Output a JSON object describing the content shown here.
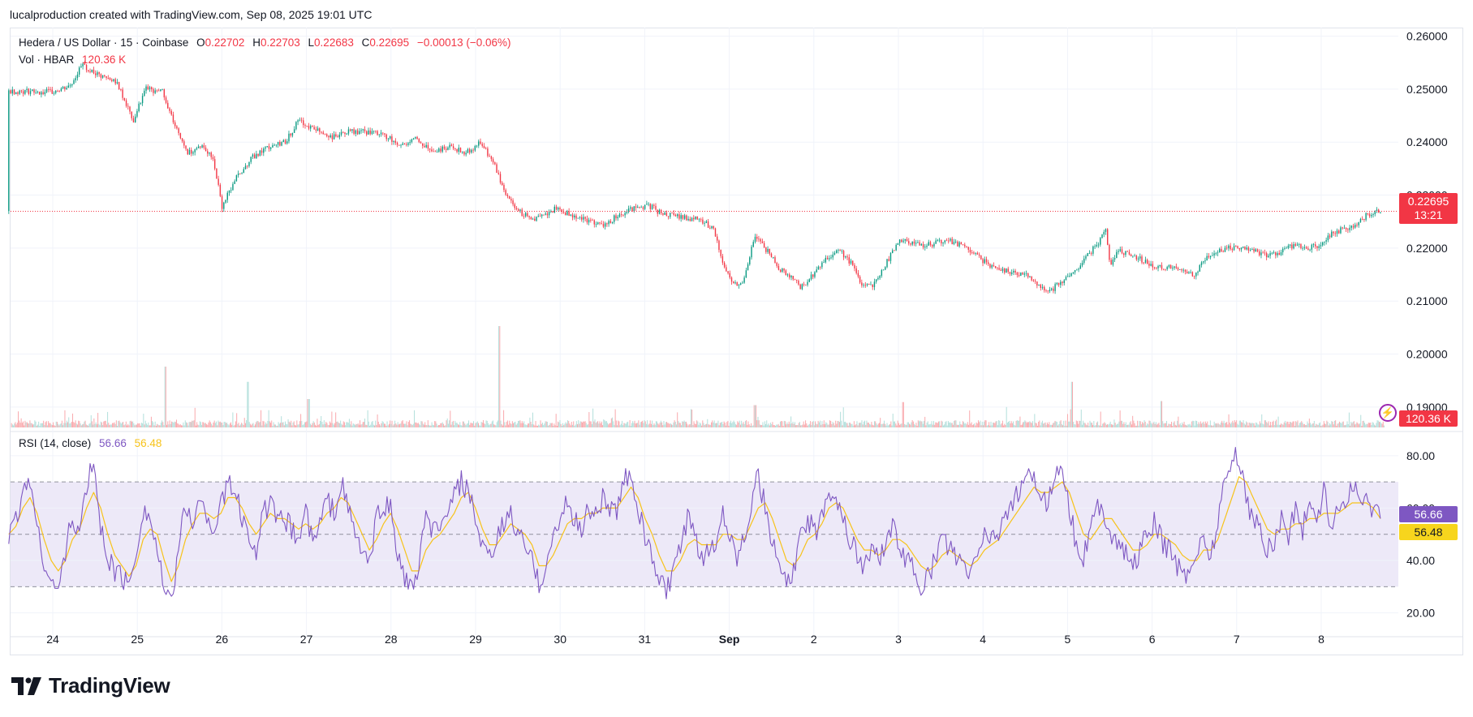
{
  "header": {
    "credit": "lucalproduction created with TradingView.com, Sep 08, 2025 19:01 UTC"
  },
  "legend": {
    "symbol": "Hedera / US Dollar · 15 · Coinbase",
    "open_label": "O",
    "open": "0.22702",
    "high_label": "H",
    "high": "0.22703",
    "low_label": "L",
    "low": "0.22683",
    "close_label": "C",
    "close": "0.22695",
    "change": "−0.00013 (−0.06%)",
    "vol_label": "Vol · HBAR",
    "vol_value": "120.36 K",
    "rsi_label": "RSI (14, close)",
    "rsi_value": "56.66",
    "rsi_ma_value": "56.48"
  },
  "tags": {
    "price": "0.22695",
    "countdown": "13:21",
    "volume": "120.36 K",
    "rsi": "56.66",
    "rsi_ma": "56.48"
  },
  "footer": {
    "brand": "TradingView"
  },
  "colors": {
    "up": "#089981",
    "down": "#f23645",
    "rsi": "#7e57c2",
    "rsi_ma": "#f7c31a",
    "rsi_band": "#ede9f8"
  },
  "chart_data": [
    {
      "type": "candlestick",
      "title": "Hedera / US Dollar · 15 · Coinbase",
      "x_ticks": [
        "24",
        "25",
        "26",
        "27",
        "28",
        "29",
        "30",
        "31",
        "Sep",
        "2",
        "3",
        "4",
        "5",
        "6",
        "7",
        "8"
      ],
      "y_ticks": [
        "0.26000",
        "0.25000",
        "0.24000",
        "0.23000",
        "0.22000",
        "0.21000",
        "0.20000",
        "0.19000"
      ],
      "ylim": [
        0.186,
        0.2607
      ],
      "last_price": 0.22695,
      "close_path": [
        [
          0.0,
          0.2495
        ],
        [
          0.2,
          0.2505
        ],
        [
          0.35,
          0.2545
        ],
        [
          0.55,
          0.2525
        ],
        [
          0.75,
          0.2515
        ],
        [
          0.95,
          0.244
        ],
        [
          1.1,
          0.25
        ],
        [
          1.3,
          0.2495
        ],
        [
          1.45,
          0.243
        ],
        [
          1.6,
          0.238
        ],
        [
          1.75,
          0.2395
        ],
        [
          1.9,
          0.237
        ],
        [
          2.0,
          0.2275
        ],
        [
          2.15,
          0.233
        ],
        [
          2.35,
          0.237
        ],
        [
          2.55,
          0.239
        ],
        [
          2.75,
          0.24
        ],
        [
          2.9,
          0.244
        ],
        [
          3.1,
          0.2425
        ],
        [
          3.3,
          0.241
        ],
        [
          3.5,
          0.242
        ],
        [
          3.7,
          0.242
        ],
        [
          3.9,
          0.2415
        ],
        [
          4.1,
          0.2395
        ],
        [
          4.3,
          0.2405
        ],
        [
          4.5,
          0.2385
        ],
        [
          4.7,
          0.239
        ],
        [
          4.9,
          0.238
        ],
        [
          5.05,
          0.24
        ],
        [
          5.2,
          0.2365
        ],
        [
          5.35,
          0.2305
        ],
        [
          5.5,
          0.227
        ],
        [
          5.65,
          0.2255
        ],
        [
          5.8,
          0.226
        ],
        [
          5.95,
          0.2275
        ],
        [
          6.1,
          0.2265
        ],
        [
          6.3,
          0.2255
        ],
        [
          6.5,
          0.224
        ],
        [
          6.7,
          0.2265
        ],
        [
          6.9,
          0.2275
        ],
        [
          7.05,
          0.228
        ],
        [
          7.2,
          0.2265
        ],
        [
          7.4,
          0.226
        ],
        [
          7.6,
          0.2255
        ],
        [
          7.8,
          0.224
        ],
        [
          7.95,
          0.216
        ],
        [
          8.05,
          0.213
        ],
        [
          8.15,
          0.213
        ],
        [
          8.3,
          0.222
        ],
        [
          8.45,
          0.2195
        ],
        [
          8.6,
          0.216
        ],
        [
          8.75,
          0.2145
        ],
        [
          8.85,
          0.2125
        ],
        [
          9.0,
          0.215
        ],
        [
          9.15,
          0.218
        ],
        [
          9.3,
          0.2195
        ],
        [
          9.45,
          0.217
        ],
        [
          9.55,
          0.2135
        ],
        [
          9.7,
          0.213
        ],
        [
          9.85,
          0.217
        ],
        [
          10.0,
          0.2215
        ],
        [
          10.15,
          0.221
        ],
        [
          10.3,
          0.2205
        ],
        [
          10.45,
          0.221
        ],
        [
          10.6,
          0.2215
        ],
        [
          10.75,
          0.2205
        ],
        [
          10.9,
          0.219
        ],
        [
          11.05,
          0.217
        ],
        [
          11.2,
          0.216
        ],
        [
          11.35,
          0.2155
        ],
        [
          11.5,
          0.215
        ],
        [
          11.6,
          0.214
        ],
        [
          11.7,
          0.2125
        ],
        [
          11.8,
          0.212
        ],
        [
          11.95,
          0.214
        ],
        [
          12.1,
          0.216
        ],
        [
          12.25,
          0.219
        ],
        [
          12.35,
          0.2205
        ],
        [
          12.45,
          0.2235
        ],
        [
          12.5,
          0.217
        ],
        [
          12.6,
          0.2195
        ],
        [
          12.75,
          0.219
        ],
        [
          12.9,
          0.2175
        ],
        [
          13.05,
          0.2165
        ],
        [
          13.2,
          0.2165
        ],
        [
          13.35,
          0.2155
        ],
        [
          13.5,
          0.215
        ],
        [
          13.6,
          0.2175
        ],
        [
          13.75,
          0.219
        ],
        [
          13.9,
          0.22
        ],
        [
          14.05,
          0.22
        ],
        [
          14.2,
          0.2195
        ],
        [
          14.35,
          0.2185
        ],
        [
          14.5,
          0.219
        ],
        [
          14.65,
          0.2205
        ],
        [
          14.8,
          0.22
        ],
        [
          14.95,
          0.2205
        ],
        [
          15.1,
          0.2225
        ],
        [
          15.25,
          0.2235
        ],
        [
          15.4,
          0.224
        ],
        [
          15.55,
          0.2265
        ],
        [
          15.7,
          0.227
        ]
      ]
    },
    {
      "type": "bar",
      "title": "Vol · HBAR",
      "last_value": "120.36 K",
      "spikes": [
        {
          "x": 1.33,
          "rel": 0.6
        },
        {
          "x": 2.3,
          "rel": 0.45
        },
        {
          "x": 3.02,
          "rel": 0.28
        },
        {
          "x": 5.28,
          "rel": 1.0
        },
        {
          "x": 8.3,
          "rel": 0.22
        },
        {
          "x": 10.05,
          "rel": 0.25
        },
        {
          "x": 12.05,
          "rel": 0.45
        },
        {
          "x": 13.1,
          "rel": 0.26
        }
      ]
    },
    {
      "type": "line",
      "title": "RSI (14, close)",
      "y_ticks": [
        "80.00",
        "60.00",
        "40.00",
        "20.00"
      ],
      "ylim": [
        14,
        88
      ],
      "band": [
        30,
        70
      ],
      "midline": 50,
      "series": [
        {
          "name": "RSI",
          "values": [
            48,
            55,
            66,
            72,
            52,
            40,
            32,
            28,
            44,
            56,
            50,
            68,
            78,
            52,
            42,
            36,
            34,
            30,
            44,
            60,
            56,
            44,
            28,
            22,
            46,
            60,
            56,
            62,
            58,
            52,
            60,
            70,
            66,
            56,
            50,
            44,
            58,
            62,
            54,
            56,
            52,
            48,
            60,
            46,
            54,
            64,
            58,
            70,
            60,
            50,
            44,
            38,
            56,
            62,
            60,
            42,
            34,
            28,
            38,
            56,
            52,
            50,
            60,
            64,
            70,
            66,
            56,
            44,
            40,
            48,
            54,
            58,
            50,
            46,
            40,
            30,
            40,
            48,
            56,
            62,
            56,
            52,
            60,
            58,
            64,
            60,
            58,
            70,
            74,
            60,
            48,
            42,
            32,
            28,
            36,
            44,
            56,
            48,
            40,
            46,
            44,
            60,
            50,
            42,
            50,
            62,
            72,
            60,
            46,
            38,
            30,
            36,
            48,
            56,
            50,
            58,
            68,
            64,
            56,
            48,
            42,
            38,
            44,
            40,
            48,
            52,
            46,
            40,
            36,
            30,
            34,
            40,
            48,
            46,
            40,
            38,
            34,
            44,
            50,
            48,
            52,
            58,
            62,
            66,
            70,
            74,
            60,
            64,
            72,
            78,
            60,
            46,
            42,
            52,
            60,
            58,
            50,
            46,
            42,
            38,
            44,
            50,
            54,
            48,
            44,
            40,
            34,
            36,
            44,
            48,
            42,
            56,
            70,
            78,
            80,
            64,
            56,
            52,
            44,
            48,
            56,
            50,
            60,
            52,
            62,
            56,
            66,
            54,
            60,
            62,
            70,
            62,
            64,
            60,
            56
          ],
          "last": 56.66
        },
        {
          "name": "RSI MA",
          "values": [
            50,
            53,
            60,
            64,
            58,
            48,
            40,
            36,
            40,
            48,
            52,
            60,
            66,
            60,
            50,
            42,
            38,
            34,
            38,
            48,
            52,
            50,
            40,
            32,
            38,
            48,
            54,
            58,
            58,
            56,
            58,
            64,
            64,
            60,
            54,
            50,
            54,
            58,
            56,
            56,
            54,
            52,
            54,
            52,
            54,
            58,
            60,
            64,
            62,
            56,
            50,
            44,
            48,
            54,
            58,
            52,
            44,
            36,
            36,
            44,
            48,
            50,
            54,
            58,
            64,
            66,
            60,
            52,
            46,
            46,
            50,
            54,
            52,
            50,
            46,
            38,
            38,
            42,
            48,
            54,
            56,
            56,
            58,
            58,
            60,
            60,
            60,
            64,
            68,
            64,
            56,
            50,
            42,
            36,
            36,
            40,
            46,
            48,
            46,
            46,
            46,
            50,
            50,
            48,
            48,
            54,
            60,
            62,
            56,
            48,
            40,
            38,
            42,
            48,
            50,
            54,
            60,
            62,
            60,
            54,
            48,
            44,
            44,
            42,
            44,
            48,
            48,
            46,
            42,
            38,
            36,
            38,
            42,
            44,
            42,
            40,
            38,
            40,
            44,
            46,
            48,
            52,
            56,
            60,
            64,
            68,
            66,
            66,
            68,
            70,
            66,
            58,
            50,
            48,
            52,
            56,
            56,
            52,
            48,
            44,
            44,
            46,
            50,
            50,
            48,
            46,
            42,
            40,
            40,
            44,
            44,
            48,
            56,
            64,
            72,
            70,
            64,
            58,
            52,
            50,
            52,
            52,
            54,
            54,
            56,
            56,
            58,
            58,
            58,
            60,
            62,
            62,
            62,
            60,
            56
          ],
          "last": 56.48
        }
      ]
    }
  ]
}
